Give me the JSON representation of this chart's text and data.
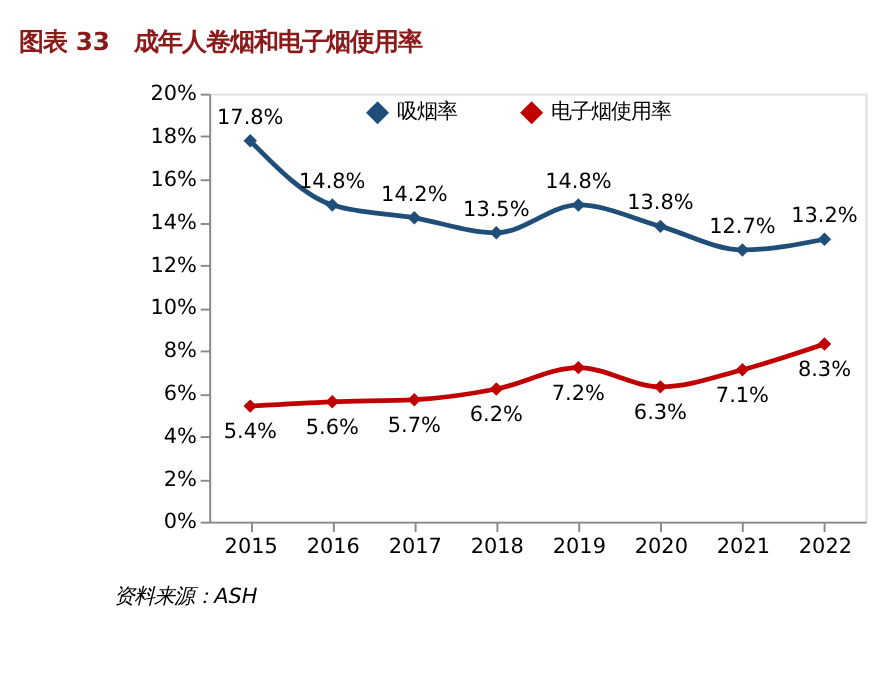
{
  "chart_data": {
    "type": "line",
    "title": "图表 33　成年人卷烟和电子烟使用率",
    "categories": [
      "2015",
      "2016",
      "2017",
      "2018",
      "2019",
      "2020",
      "2021",
      "2022"
    ],
    "series": [
      {
        "name": "吸烟率",
        "color": "#1f4e79",
        "values": [
          17.8,
          14.8,
          14.2,
          13.5,
          14.8,
          13.8,
          12.7,
          13.2
        ],
        "value_labels": [
          "17.8%",
          "14.8%",
          "14.2%",
          "13.5%",
          "14.8%",
          "13.8%",
          "12.7%",
          "13.2%"
        ]
      },
      {
        "name": "电子烟使用率",
        "color": "#c00000",
        "values": [
          5.4,
          5.6,
          5.7,
          6.2,
          7.2,
          6.3,
          7.1,
          8.3
        ],
        "value_labels": [
          "5.4%",
          "5.6%",
          "5.7%",
          "6.2%",
          "7.2%",
          "6.3%",
          "7.1%",
          "8.3%"
        ]
      }
    ],
    "ylim": [
      0,
      20
    ],
    "yticks": [
      {
        "value": 0,
        "label": "0%"
      },
      {
        "value": 2,
        "label": "2%"
      },
      {
        "value": 4,
        "label": "4%"
      },
      {
        "value": 6,
        "label": "6%"
      },
      {
        "value": 8,
        "label": "8%"
      },
      {
        "value": 10,
        "label": "10%"
      },
      {
        "value": 12,
        "label": "12%"
      },
      {
        "value": 14,
        "label": "14%"
      },
      {
        "value": 16,
        "label": "16%"
      },
      {
        "value": 18,
        "label": "18%"
      },
      {
        "value": 20,
        "label": "20%"
      }
    ],
    "marker": "diamond",
    "line_style": "solid",
    "grid": false,
    "legend": "top",
    "annotations": [
      "资料来源：ASH"
    ]
  }
}
